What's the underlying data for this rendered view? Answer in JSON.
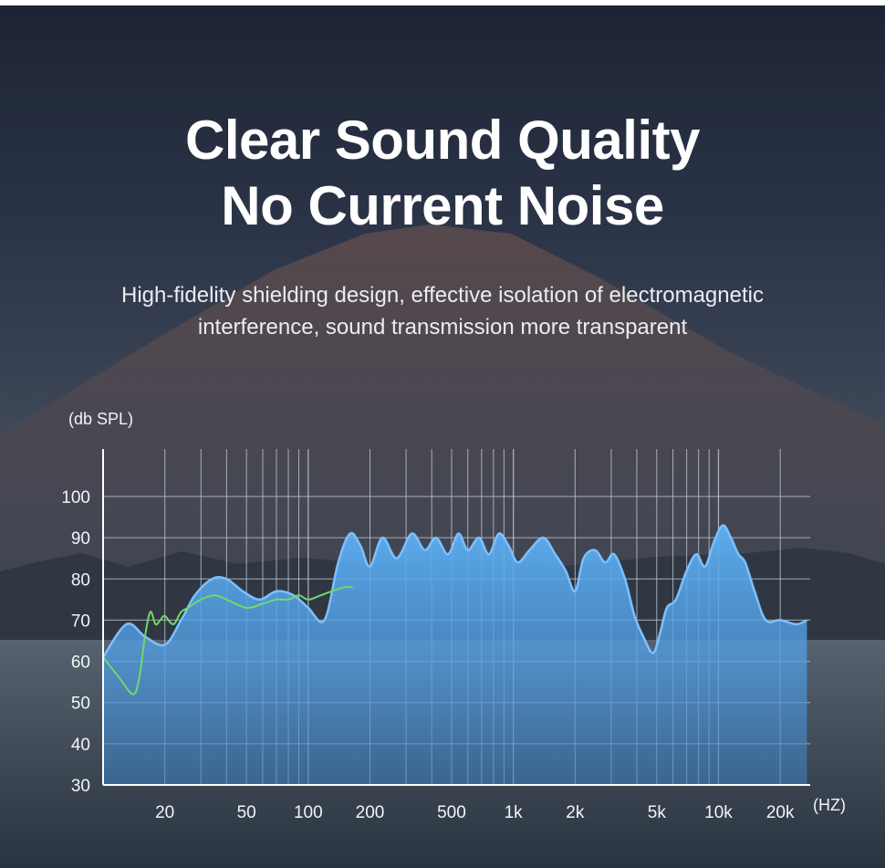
{
  "headline": {
    "line1": "Clear Sound Quality",
    "line2": "No Current Noise"
  },
  "subtext": {
    "line1": "High-fidelity shielding design, effective isolation of electromagnetic",
    "line2": "interference, sound transmission more transparent"
  },
  "chart_data": {
    "type": "area",
    "ylabel": "(db SPL)",
    "xlabel": "(HZ)",
    "x_scale": "log",
    "xlim": [
      10,
      28000
    ],
    "ylim": [
      30,
      100
    ],
    "y_ticks": [
      100,
      90,
      80,
      70,
      60,
      50,
      40,
      30
    ],
    "x_ticks": [
      {
        "label": "20",
        "value": 20
      },
      {
        "label": "50",
        "value": 50
      },
      {
        "label": "100",
        "value": 100
      },
      {
        "label": "200",
        "value": 200
      },
      {
        "label": "500",
        "value": 500
      },
      {
        "label": "1k",
        "value": 1000
      },
      {
        "label": "2k",
        "value": 2000
      },
      {
        "label": "5k",
        "value": 5000
      },
      {
        "label": "10k",
        "value": 10000
      },
      {
        "label": "20k",
        "value": 20000
      }
    ],
    "grid": true,
    "legend": "none",
    "colors": {
      "area": "#5aa9ef",
      "area_line": "#7cc0ff",
      "comparison": "#6fd96a",
      "grid": "#c9d2dc",
      "text": "#f2f4f7"
    },
    "series": [
      {
        "x": [
          10,
          13,
          16,
          20,
          24,
          28,
          34,
          40,
          48,
          58,
          70,
          85,
          100,
          120,
          140,
          160,
          180,
          200,
          230,
          270,
          320,
          370,
          420,
          480,
          540,
          600,
          680,
          760,
          850,
          950,
          1050,
          1200,
          1400,
          1600,
          1800,
          2000,
          2200,
          2500,
          2800,
          3100,
          3500,
          3900,
          4300,
          4800,
          5200,
          5600,
          6200,
          7000,
          7800,
          8600,
          9500,
          10500,
          11500,
          12500,
          13500,
          15000,
          17000,
          20000,
          24000,
          27000
        ],
        "values": [
          61,
          69,
          66,
          64,
          70,
          76,
          80,
          80,
          77,
          75,
          77,
          76,
          73,
          70,
          84,
          91,
          88,
          83,
          90,
          85,
          91,
          87,
          90,
          86,
          91,
          87,
          90,
          86,
          91,
          88,
          84,
          87,
          90,
          86,
          82,
          77,
          85,
          87,
          84,
          86,
          80,
          71,
          66,
          62,
          67,
          73,
          75,
          82,
          86,
          83,
          89,
          93,
          90,
          86,
          84,
          77,
          70,
          70,
          69,
          70
        ]
      },
      {
        "x": [
          10,
          12,
          14,
          15,
          16,
          17,
          18,
          19,
          20,
          22,
          24,
          26,
          30,
          35,
          40,
          50,
          60,
          70,
          80,
          90,
          100,
          115,
          130,
          150,
          165
        ],
        "values": [
          61,
          56,
          52,
          56,
          66,
          72,
          69,
          70,
          71,
          69,
          72,
          73,
          75,
          76,
          75,
          73,
          74,
          75,
          75,
          76,
          75,
          76,
          77,
          78,
          78
        ]
      }
    ]
  }
}
